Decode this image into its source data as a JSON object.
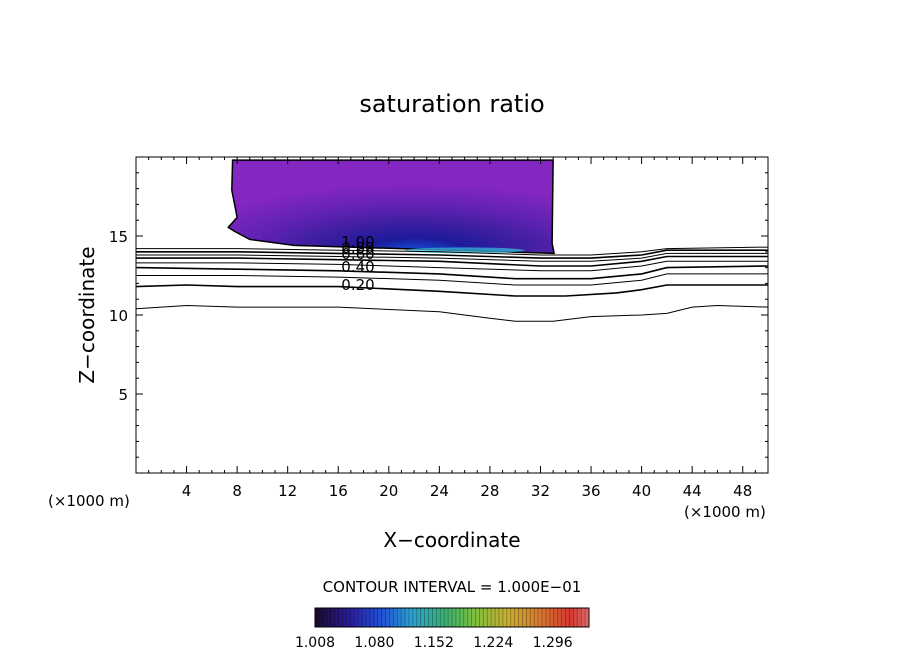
{
  "chart_data": {
    "type": "contour",
    "title": "saturation ratio",
    "xlabel": "X−coordinate",
    "ylabel": "Z−coordinate",
    "x_unit_left": "(×1000 m)",
    "x_unit_right": "(×1000 m)",
    "xlim": [
      0,
      50
    ],
    "ylim": [
      0,
      20
    ],
    "x_ticks": [
      4,
      8,
      12,
      16,
      20,
      24,
      28,
      32,
      36,
      40,
      44,
      48
    ],
    "x_tick_labels": [
      "4",
      "8",
      "12",
      "16",
      "20",
      "24",
      "28",
      "32",
      "36",
      "40",
      "44",
      "48"
    ],
    "y_ticks": [
      5,
      10,
      15
    ],
    "y_tick_labels": [
      "5",
      "10",
      "15"
    ],
    "contour_interval_text": "CONTOUR INTERVAL = 1.000E−01",
    "contour_labels": [
      "1.00",
      "0.80",
      "0.60",
      "0.40",
      "0.20"
    ],
    "contour_lines": [
      {
        "level": 0.1,
        "points": [
          [
            0,
            10.4
          ],
          [
            4,
            10.6
          ],
          [
            8,
            10.5
          ],
          [
            16,
            10.5
          ],
          [
            24,
            10.2
          ],
          [
            28,
            9.8
          ],
          [
            30,
            9.6
          ],
          [
            33,
            9.6
          ],
          [
            36,
            9.9
          ],
          [
            40,
            10.0
          ],
          [
            42,
            10.1
          ],
          [
            44,
            10.5
          ],
          [
            46,
            10.6
          ],
          [
            50,
            10.5
          ]
        ]
      },
      {
        "level": 0.2,
        "points": [
          [
            0,
            11.8
          ],
          [
            4,
            11.9
          ],
          [
            8,
            11.8
          ],
          [
            16,
            11.8
          ],
          [
            24,
            11.5
          ],
          [
            30,
            11.2
          ],
          [
            34,
            11.2
          ],
          [
            38,
            11.4
          ],
          [
            40,
            11.6
          ],
          [
            42,
            11.9
          ],
          [
            46,
            11.9
          ],
          [
            50,
            11.9
          ]
        ]
      },
      {
        "level": 0.3,
        "points": [
          [
            0,
            12.5
          ],
          [
            8,
            12.5
          ],
          [
            16,
            12.4
          ],
          [
            24,
            12.2
          ],
          [
            30,
            11.9
          ],
          [
            36,
            11.9
          ],
          [
            40,
            12.2
          ],
          [
            42,
            12.6
          ],
          [
            50,
            12.6
          ]
        ]
      },
      {
        "level": 0.4,
        "points": [
          [
            0,
            13.0
          ],
          [
            8,
            12.9
          ],
          [
            16,
            12.8
          ],
          [
            24,
            12.6
          ],
          [
            30,
            12.3
          ],
          [
            36,
            12.3
          ],
          [
            40,
            12.6
          ],
          [
            42,
            13.0
          ],
          [
            50,
            13.1
          ]
        ]
      },
      {
        "level": 0.5,
        "points": [
          [
            0,
            13.3
          ],
          [
            8,
            13.3
          ],
          [
            16,
            13.2
          ],
          [
            24,
            13.0
          ],
          [
            32,
            12.8
          ],
          [
            36,
            12.8
          ],
          [
            40,
            13.1
          ],
          [
            42,
            13.4
          ],
          [
            50,
            13.4
          ]
        ]
      },
      {
        "level": 0.6,
        "points": [
          [
            0,
            13.6
          ],
          [
            8,
            13.6
          ],
          [
            16,
            13.5
          ],
          [
            24,
            13.4
          ],
          [
            32,
            13.1
          ],
          [
            36,
            13.1
          ],
          [
            40,
            13.4
          ],
          [
            42,
            13.7
          ],
          [
            50,
            13.7
          ]
        ]
      },
      {
        "level": 0.7,
        "points": [
          [
            0,
            13.8
          ],
          [
            8,
            13.8
          ],
          [
            16,
            13.7
          ],
          [
            24,
            13.6
          ],
          [
            32,
            13.4
          ],
          [
            36,
            13.4
          ],
          [
            40,
            13.6
          ],
          [
            42,
            13.9
          ],
          [
            50,
            13.9
          ]
        ]
      },
      {
        "level": 0.8,
        "points": [
          [
            0,
            14.0
          ],
          [
            8,
            14.0
          ],
          [
            16,
            13.9
          ],
          [
            24,
            13.8
          ],
          [
            32,
            13.6
          ],
          [
            36,
            13.6
          ],
          [
            40,
            13.8
          ],
          [
            42,
            14.1
          ],
          [
            50,
            14.1
          ]
        ]
      },
      {
        "level": 0.9,
        "points": [
          [
            0,
            14.2
          ],
          [
            8,
            14.2
          ],
          [
            16,
            14.1
          ],
          [
            24,
            14.0
          ],
          [
            32,
            13.8
          ],
          [
            36,
            13.8
          ],
          [
            40,
            14.0
          ],
          [
            42,
            14.2
          ],
          [
            50,
            14.3
          ]
        ]
      }
    ],
    "supersaturated_region": {
      "x_range": [
        7.5,
        33
      ],
      "z_range": [
        13.9,
        19.8
      ],
      "colorbar_min": 1.008,
      "colorbar_max": 1.34,
      "colorbar_tick_labels": [
        "1.008",
        "1.080",
        "1.152",
        "1.224",
        "1.296"
      ],
      "colorbar_tick_values": [
        1.008,
        1.08,
        1.152,
        1.224,
        1.296
      ]
    },
    "grid": false,
    "legend": "none"
  }
}
